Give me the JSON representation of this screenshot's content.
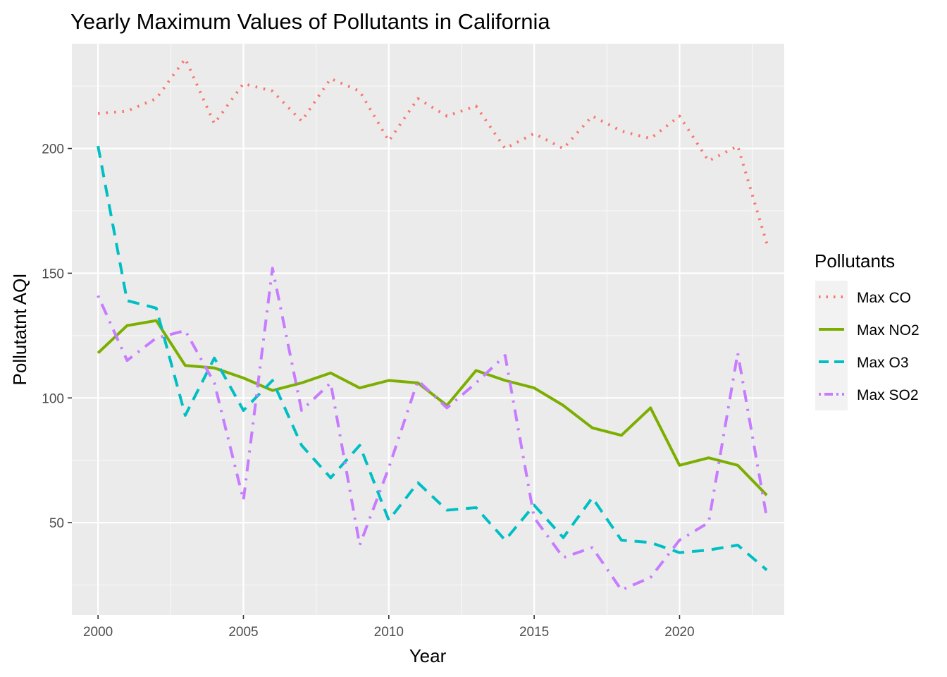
{
  "chart_data": {
    "type": "line",
    "title": "Yearly Maximum Values of Pollutants in California",
    "xlabel": "Year",
    "ylabel": "Pollutatnt AQI",
    "xlim": [
      1999.1,
      2023.6
    ],
    "ylim": [
      13,
      242
    ],
    "x_ticks": [
      2000,
      2005,
      2010,
      2015,
      2020
    ],
    "y_ticks": [
      50,
      100,
      150,
      200
    ],
    "grid": true,
    "legend": {
      "title": "Pollutants",
      "position": "right"
    },
    "x": [
      2000,
      2001,
      2002,
      2003,
      2004,
      2005,
      2006,
      2007,
      2008,
      2009,
      2010,
      2011,
      2012,
      2013,
      2014,
      2015,
      2016,
      2017,
      2018,
      2019,
      2020,
      2021,
      2022,
      2023
    ],
    "series": [
      {
        "name": "Max CO",
        "color": "#F8766D",
        "dash": "dotted",
        "values": [
          214,
          215,
          220,
          236,
          210,
          226,
          223,
          211,
          228,
          223,
          203,
          220,
          213,
          217,
          200,
          206,
          200,
          213,
          207,
          204,
          213,
          195,
          201,
          162
        ]
      },
      {
        "name": "Max NO2",
        "color": "#7CAE00",
        "dash": "solid",
        "values": [
          118,
          129,
          131,
          113,
          112,
          108,
          103,
          106,
          110,
          104,
          107,
          106,
          97,
          111,
          107,
          104,
          97,
          88,
          85,
          96,
          73,
          76,
          73,
          61
        ]
      },
      {
        "name": "Max O3",
        "color": "#00BFC4",
        "dash": "dashed",
        "values": [
          201,
          139,
          136,
          93,
          116,
          95,
          107,
          81,
          68,
          81,
          51,
          66,
          55,
          56,
          43,
          57,
          44,
          60,
          43,
          42,
          38,
          39,
          41,
          31
        ]
      },
      {
        "name": "Max SO2",
        "color": "#C77CFF",
        "dash": "dotdash",
        "values": [
          141,
          115,
          124,
          127,
          106,
          59,
          152,
          95,
          106,
          41,
          72,
          107,
          96,
          106,
          117,
          52,
          36,
          40,
          23,
          28,
          43,
          50,
          118,
          52
        ]
      }
    ]
  }
}
